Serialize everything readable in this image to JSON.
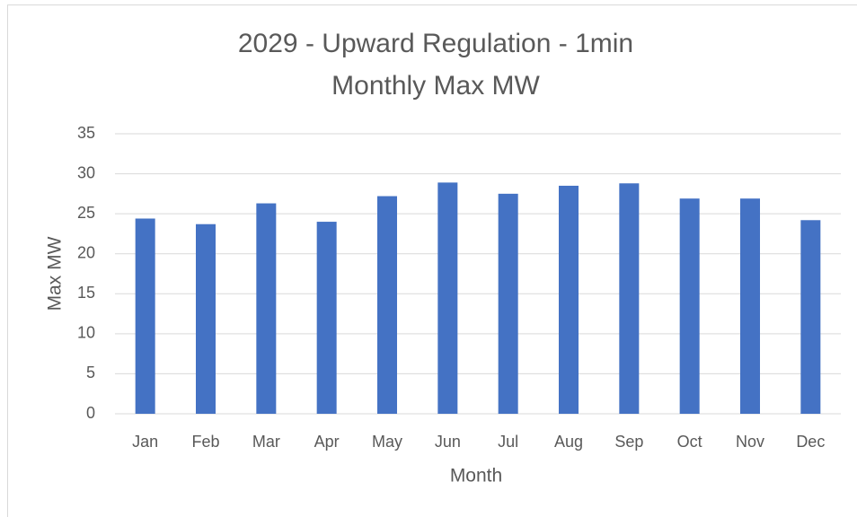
{
  "chart_data": {
    "type": "bar",
    "title": "2029 - Upward Regulation - 1min",
    "subtitle": "Monthly Max MW",
    "x_label": "Month",
    "y_label": "Max MW",
    "categories": [
      "Jan",
      "Feb",
      "Mar",
      "Apr",
      "May",
      "Jun",
      "Jul",
      "Aug",
      "Sep",
      "Oct",
      "Nov",
      "Dec"
    ],
    "values": [
      24.4,
      23.7,
      26.3,
      24.0,
      27.2,
      28.9,
      27.5,
      28.5,
      28.8,
      26.9,
      26.9,
      24.2
    ],
    "color": "#4472c4",
    "ylim": [
      0,
      35
    ],
    "yticks": [
      0,
      5,
      10,
      15,
      20,
      25,
      30,
      35
    ],
    "grid": true
  }
}
